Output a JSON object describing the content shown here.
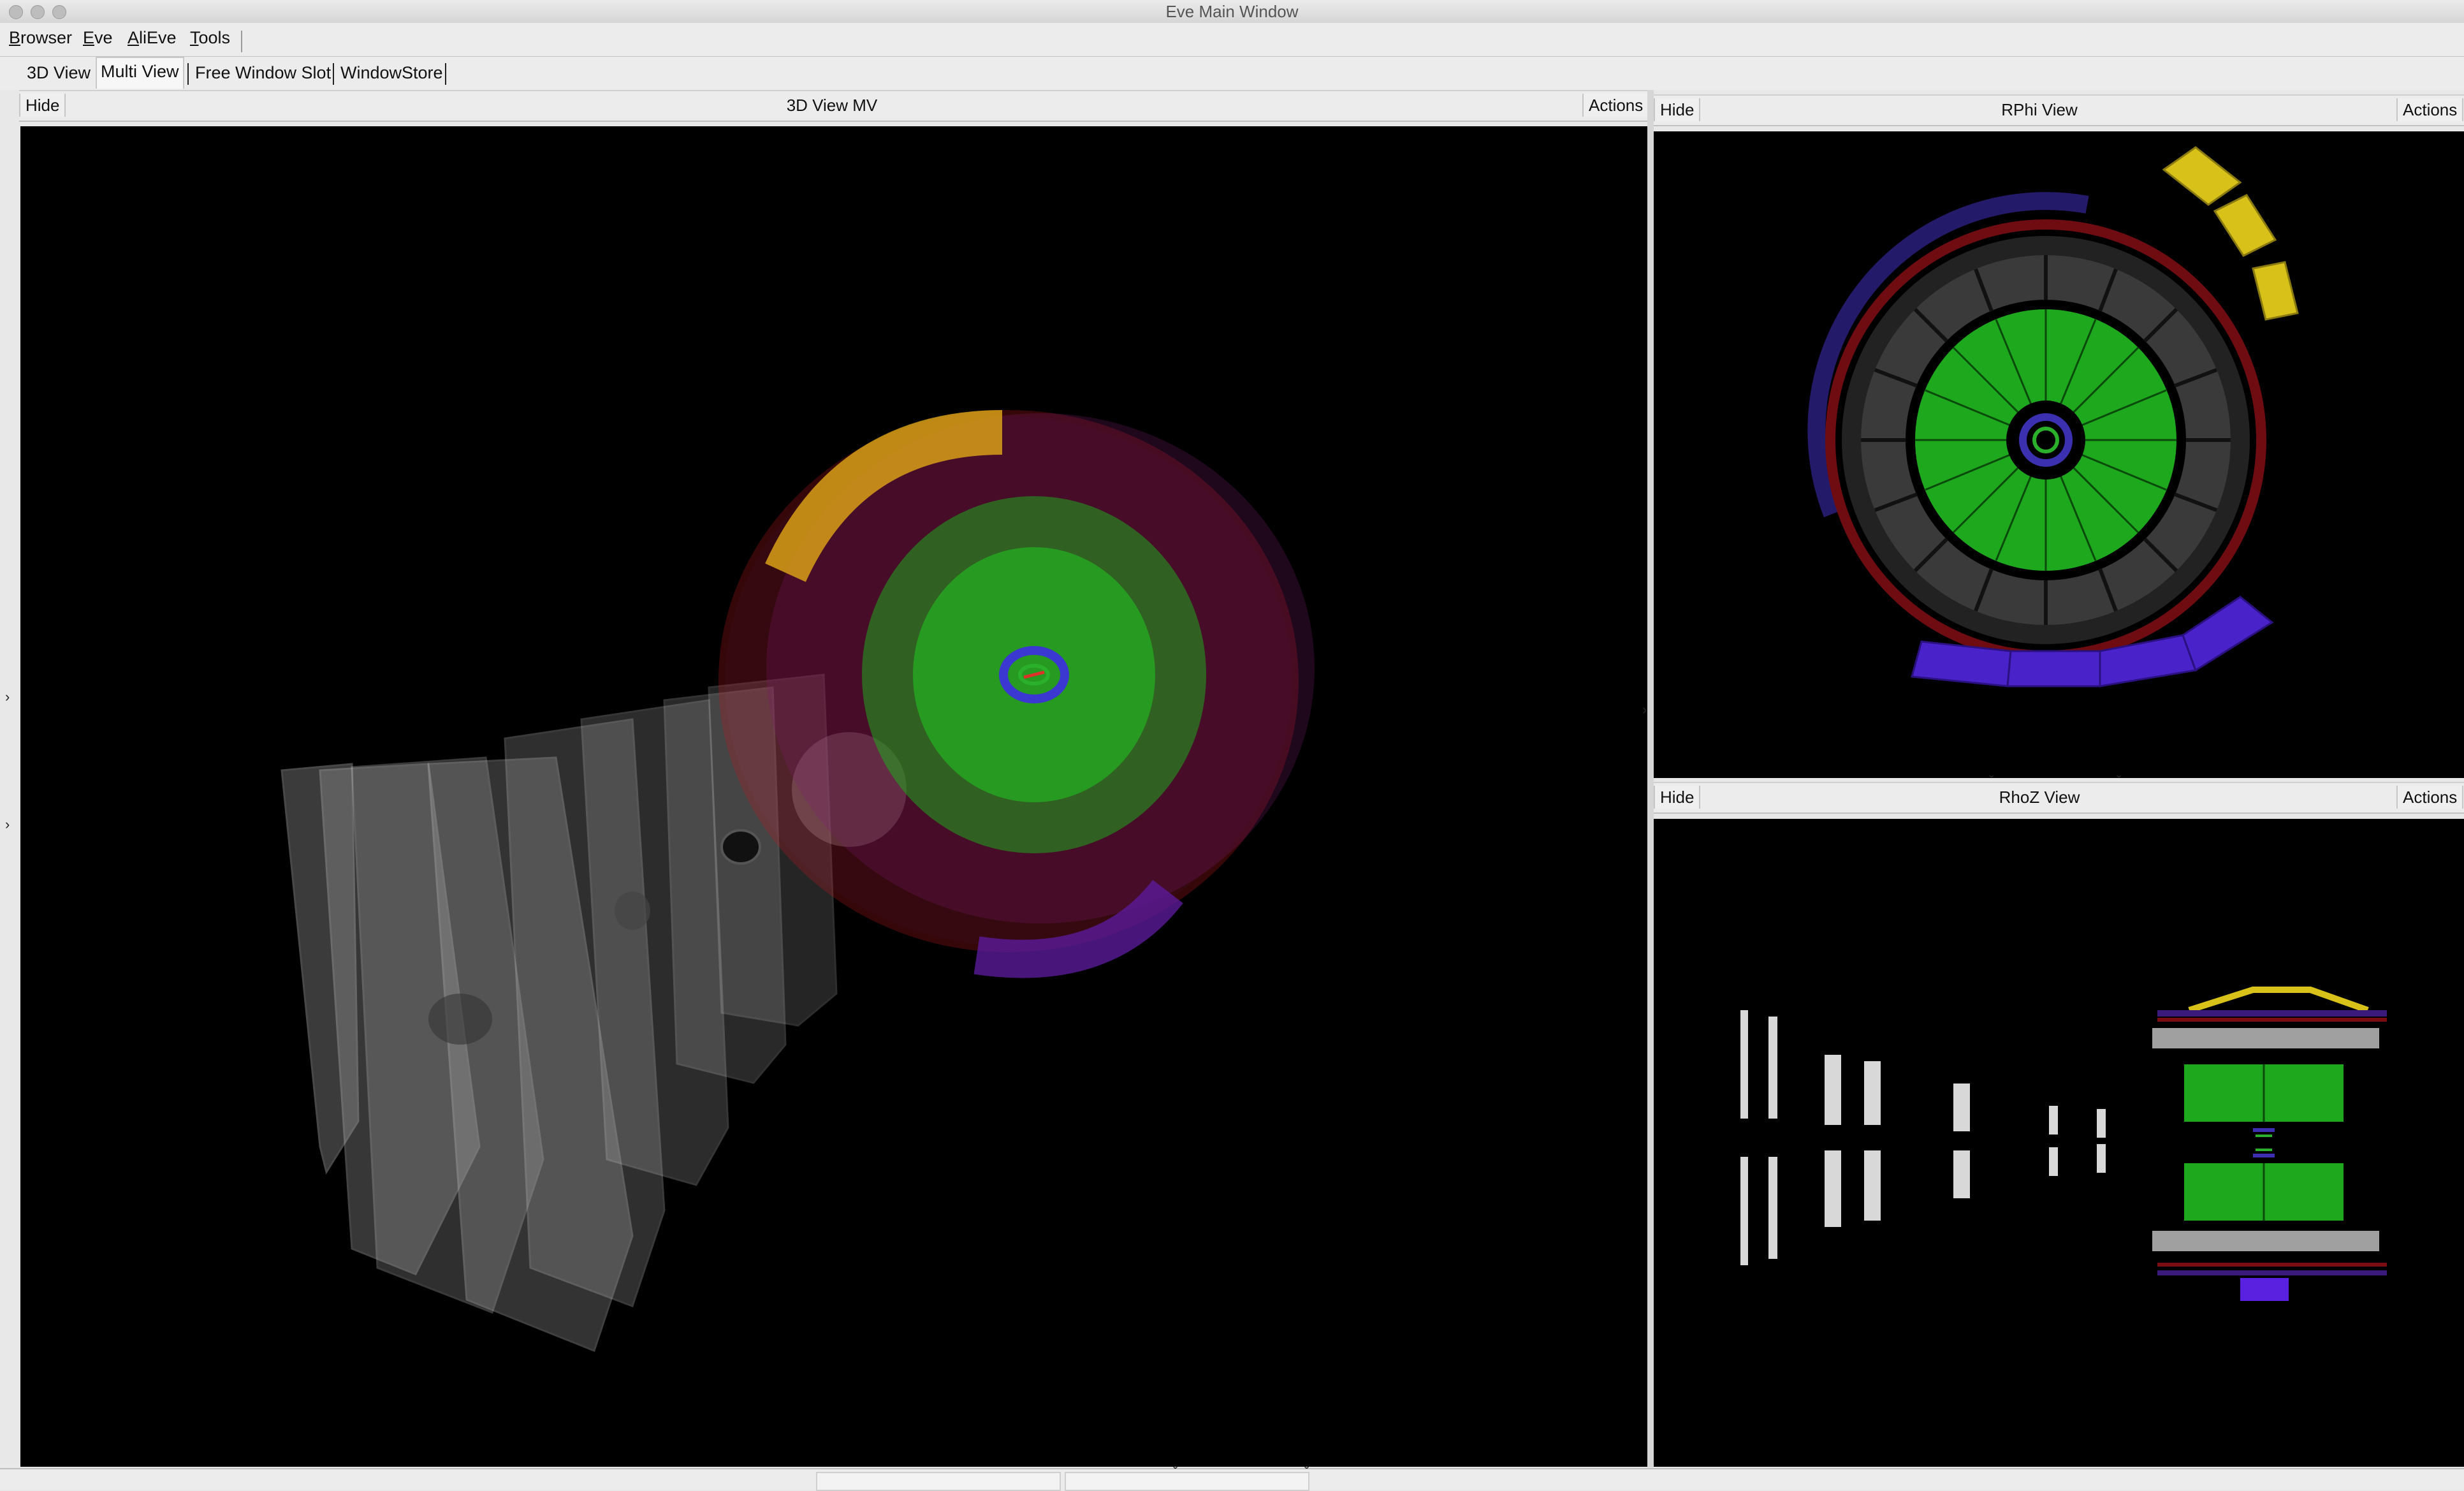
{
  "window": {
    "title": "Eve Main Window"
  },
  "menu": [
    {
      "label": "Browser",
      "underline": "B",
      "rest": "rowser"
    },
    {
      "label": "Eve",
      "underline": "E",
      "rest": "ve"
    },
    {
      "label": "AliEve",
      "underline": "A",
      "rest": "liEve"
    },
    {
      "label": "Tools",
      "underline": "T",
      "rest": "ools"
    }
  ],
  "tabs": [
    {
      "label": "3D View"
    },
    {
      "label": "Multi View"
    },
    {
      "label": "Free Window Slot"
    },
    {
      "label": "WindowStore"
    }
  ],
  "panels": {
    "main": {
      "hide": "Hide",
      "title": "3D View MV",
      "actions": "Actions"
    },
    "rphi": {
      "hide": "Hide",
      "title": "RPhi View",
      "actions": "Actions"
    },
    "rhoz": {
      "hide": "Hide",
      "title": "RhoZ View",
      "actions": "Actions"
    }
  },
  "colors": {
    "tpc_green": "#1ea81e",
    "emcal_yellow": "#d8c21a",
    "phos_purple": "#4a22c9",
    "tof_red": "#7a0c12",
    "trd_gray": "#3a3a3a",
    "muon_gray": "#9a9a9a"
  }
}
